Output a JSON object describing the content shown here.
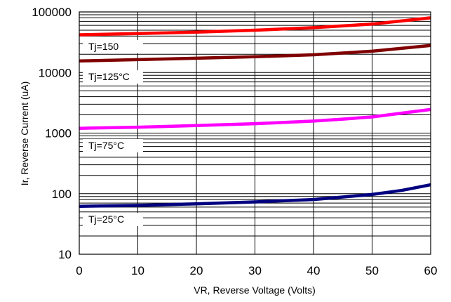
{
  "chart_data": {
    "type": "line",
    "title": "",
    "xlabel": "VR, Reverse Voltage (Volts)",
    "ylabel": "Ir, Reverse Current (uA)",
    "xlim": [
      0,
      60
    ],
    "ylim": [
      10,
      100000
    ],
    "yscale": "log",
    "grid": true,
    "x_ticks": [
      "0",
      "10",
      "20",
      "30",
      "40",
      "50",
      "60"
    ],
    "y_ticks": [
      "10",
      "100",
      "1000",
      "10000",
      "100000"
    ],
    "series": [
      {
        "name": "Tj=150",
        "color": "#ff0000",
        "x": [
          0,
          10,
          20,
          30,
          40,
          50,
          60
        ],
        "y": [
          42000,
          44000,
          46500,
          50000,
          55000,
          63000,
          80000
        ]
      },
      {
        "name": "Tj=125°C",
        "color": "#800000",
        "x": [
          0,
          10,
          20,
          30,
          40,
          50,
          60
        ],
        "y": [
          15500,
          16300,
          17200,
          18200,
          19600,
          22500,
          28000
        ]
      },
      {
        "name": "Tj=75°C",
        "color": "#ff00ff",
        "x": [
          0,
          10,
          20,
          30,
          40,
          45,
          50,
          60
        ],
        "y": [
          1200,
          1250,
          1330,
          1430,
          1580,
          1700,
          1850,
          2450
        ]
      },
      {
        "name": "Tj=25°C",
        "color": "#000080",
        "x": [
          0,
          10,
          20,
          30,
          40,
          50,
          55,
          60
        ],
        "y": [
          62,
          64,
          68,
          73,
          80,
          97,
          113,
          140
        ]
      }
    ]
  }
}
